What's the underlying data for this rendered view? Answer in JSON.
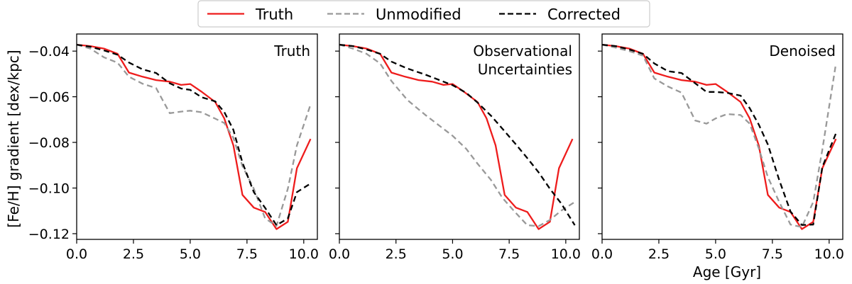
{
  "legend": {
    "entries": [
      {
        "label": "Truth",
        "color": "#ee1c1c",
        "dash": "solid"
      },
      {
        "label": "Unmodified",
        "color": "#999999",
        "dash": "dashed"
      },
      {
        "label": "Corrected",
        "color": "#000000",
        "dash": "dashed"
      }
    ]
  },
  "axes": {
    "ylabel": "[Fe/H] gradient [dex/kpc]",
    "xlabel": "Age [Gyr]",
    "x_ticks": [
      "0.0",
      "2.5",
      "5.0",
      "7.5",
      "10.0"
    ],
    "y_ticks": [
      "−0.04",
      "−0.06",
      "−0.08",
      "−0.10",
      "−0.12"
    ]
  },
  "chart_data": [
    {
      "type": "line",
      "title": "Truth",
      "xlim": [
        0,
        10.6
      ],
      "ylim": [
        -0.1225,
        -0.0325
      ],
      "series": [
        {
          "name": "Truth",
          "x": [
            0,
            0.6,
            1.2,
            1.8,
            2.3,
            2.9,
            3.5,
            4.1,
            4.6,
            5.0,
            5.5,
            6.1,
            6.5,
            6.9,
            7.3,
            7.8,
            8.3,
            8.8,
            9.3,
            9.7,
            10.3
          ],
          "y": [
            -0.0372,
            -0.0378,
            -0.0389,
            -0.0412,
            -0.0494,
            -0.0512,
            -0.0527,
            -0.0534,
            -0.0548,
            -0.0544,
            -0.0578,
            -0.0623,
            -0.0695,
            -0.0813,
            -0.103,
            -0.1086,
            -0.1105,
            -0.118,
            -0.1148,
            -0.0913,
            -0.0785
          ]
        },
        {
          "name": "Unmodified",
          "x": [
            0,
            0.6,
            1.2,
            1.8,
            2.3,
            2.9,
            3.5,
            4.1,
            4.6,
            5.0,
            5.5,
            6.1,
            6.5,
            6.9,
            7.3,
            7.8,
            8.3,
            8.8,
            9.3,
            9.7,
            10.3
          ],
          "y": [
            -0.0372,
            -0.0389,
            -0.0427,
            -0.0451,
            -0.0512,
            -0.0543,
            -0.0562,
            -0.0672,
            -0.0665,
            -0.0661,
            -0.0668,
            -0.0696,
            -0.0715,
            -0.078,
            -0.0904,
            -0.1003,
            -0.1133,
            -0.1166,
            -0.1003,
            -0.0813,
            -0.0634
          ]
        },
        {
          "name": "Corrected",
          "x": [
            0,
            0.6,
            1.2,
            1.8,
            2.3,
            2.9,
            3.5,
            4.1,
            4.6,
            5.0,
            5.5,
            6.1,
            6.5,
            6.9,
            7.3,
            7.8,
            8.3,
            8.8,
            9.3,
            9.7,
            10.3
          ],
          "y": [
            -0.0372,
            -0.0381,
            -0.0397,
            -0.0416,
            -0.045,
            -0.048,
            -0.0496,
            -0.0541,
            -0.0564,
            -0.057,
            -0.0602,
            -0.062,
            -0.0667,
            -0.0745,
            -0.0889,
            -0.1018,
            -0.1087,
            -0.1163,
            -0.1133,
            -0.1018,
            -0.098
          ]
        }
      ]
    },
    {
      "type": "line",
      "title": "Observational Uncertainties",
      "title_lines": [
        "Observational",
        "Uncertainties"
      ],
      "xlim": [
        0,
        10.6
      ],
      "ylim": [
        -0.1225,
        -0.0325
      ],
      "series": [
        {
          "name": "Truth",
          "x": [
            0,
            0.6,
            1.2,
            1.8,
            2.3,
            2.9,
            3.5,
            4.1,
            4.6,
            5.0,
            5.5,
            6.1,
            6.5,
            6.9,
            7.3,
            7.8,
            8.3,
            8.8,
            9.3,
            9.7,
            10.3
          ],
          "y": [
            -0.0372,
            -0.0378,
            -0.0389,
            -0.0412,
            -0.0494,
            -0.0512,
            -0.0527,
            -0.0534,
            -0.0548,
            -0.0544,
            -0.0578,
            -0.0623,
            -0.0695,
            -0.0813,
            -0.103,
            -0.1086,
            -0.1105,
            -0.118,
            -0.1148,
            -0.0913,
            -0.0785
          ]
        },
        {
          "name": "Unmodified",
          "x": [
            0,
            0.6,
            1.2,
            1.8,
            2.3,
            3.0,
            3.8,
            4.5,
            5.0,
            5.6,
            6.1,
            6.7,
            7.2,
            7.8,
            8.3,
            8.8,
            9.3,
            9.8,
            10.4
          ],
          "y": [
            -0.0372,
            -0.0389,
            -0.0412,
            -0.0454,
            -0.0531,
            -0.0614,
            -0.068,
            -0.0733,
            -0.0771,
            -0.0828,
            -0.0893,
            -0.0965,
            -0.1043,
            -0.111,
            -0.1163,
            -0.1167,
            -0.114,
            -0.1099,
            -0.1061
          ]
        },
        {
          "name": "Corrected",
          "x": [
            0,
            0.6,
            1.2,
            1.8,
            2.3,
            3.0,
            3.8,
            4.5,
            5.0,
            5.6,
            6.1,
            6.7,
            7.2,
            7.8,
            8.3,
            8.8,
            9.3,
            9.8,
            10.4
          ],
          "y": [
            -0.0372,
            -0.0378,
            -0.0393,
            -0.0412,
            -0.0446,
            -0.0476,
            -0.0503,
            -0.053,
            -0.0549,
            -0.0583,
            -0.0625,
            -0.0683,
            -0.074,
            -0.0809,
            -0.0869,
            -0.0931,
            -0.1003,
            -0.1068,
            -0.1163
          ]
        }
      ]
    },
    {
      "type": "line",
      "title": "Denoised",
      "xlim": [
        0,
        10.6
      ],
      "ylim": [
        -0.1225,
        -0.0325
      ],
      "series": [
        {
          "name": "Truth",
          "x": [
            0,
            0.6,
            1.2,
            1.8,
            2.3,
            2.9,
            3.5,
            4.1,
            4.6,
            5.0,
            5.5,
            6.1,
            6.5,
            6.9,
            7.3,
            7.8,
            8.3,
            8.8,
            9.3,
            9.7,
            10.3
          ],
          "y": [
            -0.0372,
            -0.0378,
            -0.0389,
            -0.0412,
            -0.0494,
            -0.0512,
            -0.0527,
            -0.0534,
            -0.0548,
            -0.0544,
            -0.0578,
            -0.0623,
            -0.0695,
            -0.0813,
            -0.103,
            -0.1086,
            -0.1105,
            -0.118,
            -0.1148,
            -0.0913,
            -0.0785
          ]
        },
        {
          "name": "Unmodified",
          "x": [
            0,
            0.6,
            1.2,
            1.8,
            2.3,
            2.9,
            3.5,
            4.1,
            4.6,
            5.0,
            5.5,
            6.1,
            6.5,
            6.9,
            7.3,
            7.8,
            8.3,
            8.8,
            9.3,
            9.7,
            10.3
          ],
          "y": [
            -0.0372,
            -0.0385,
            -0.04,
            -0.042,
            -0.052,
            -0.0555,
            -0.0582,
            -0.0704,
            -0.0718,
            -0.0695,
            -0.0676,
            -0.068,
            -0.0718,
            -0.0826,
            -0.0952,
            -0.1061,
            -0.116,
            -0.1171,
            -0.1061,
            -0.0832,
            -0.0454
          ]
        },
        {
          "name": "Corrected",
          "x": [
            0,
            0.6,
            1.2,
            1.8,
            2.3,
            2.9,
            3.5,
            4.1,
            4.6,
            5.0,
            5.5,
            6.1,
            6.5,
            6.9,
            7.3,
            7.8,
            8.3,
            8.8,
            9.3,
            9.7,
            10.3
          ],
          "y": [
            -0.0372,
            -0.0378,
            -0.0393,
            -0.0412,
            -0.0454,
            -0.0488,
            -0.0496,
            -0.0541,
            -0.0579,
            -0.0579,
            -0.0583,
            -0.0595,
            -0.065,
            -0.0722,
            -0.0809,
            -0.0965,
            -0.1103,
            -0.1162,
            -0.116,
            -0.0908,
            -0.076
          ]
        }
      ]
    }
  ]
}
